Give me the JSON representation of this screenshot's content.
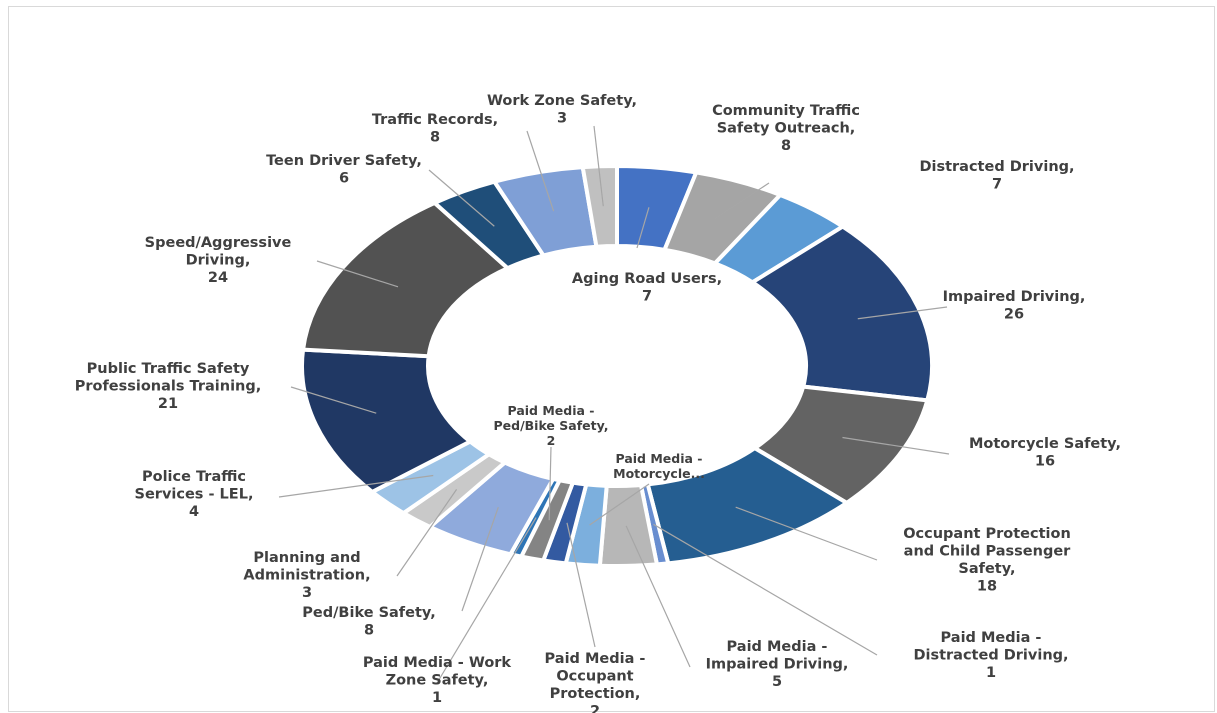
{
  "chart_data": {
    "type": "pie",
    "title": "",
    "slices": [
      {
        "name": "Aging Road Users",
        "value": 7,
        "color": "#4472c4"
      },
      {
        "name": "Community Traffic Safety Outreach",
        "value": 8,
        "color": "#a5a5a5"
      },
      {
        "name": "Distracted Driving",
        "value": 7,
        "color": "#5b9bd5"
      },
      {
        "name": "Impaired Driving",
        "value": 26,
        "color": "#264478"
      },
      {
        "name": "Motorcycle Safety",
        "value": 16,
        "color": "#636363"
      },
      {
        "name": "Occupant Protection and Child Passenger Safety",
        "value": 18,
        "color": "#255e91"
      },
      {
        "name": "Paid Media - Distracted Driving",
        "value": 1,
        "color": "#698ed0"
      },
      {
        "name": "Paid Media - Impaired Driving",
        "value": 5,
        "color": "#b7b7b7"
      },
      {
        "name": "Paid Media - Motorcycle Safety",
        "value": 3,
        "color": "#7cafdd"
      },
      {
        "name": "Paid Media - Occupant Protection",
        "value": 2,
        "color": "#335aa1"
      },
      {
        "name": "Paid Media - Ped/Bike Safety",
        "value": 2,
        "color": "#848484"
      },
      {
        "name": "Paid Media - Work Zone Safety",
        "value": 1,
        "color": "#2e75b6"
      },
      {
        "name": "Ped/Bike Safety",
        "value": 8,
        "color": "#8faadc"
      },
      {
        "name": "Planning and Administration",
        "value": 3,
        "color": "#c9c9c9"
      },
      {
        "name": "Police Traffic Services - LEL",
        "value": 4,
        "color": "#9dc3e6"
      },
      {
        "name": "Public Traffic Safety Professionals Training",
        "value": 21,
        "color": "#203864"
      },
      {
        "name": "Speed/Aggressive Driving",
        "value": 24,
        "color": "#525252"
      },
      {
        "name": "Teen Driver Safety",
        "value": 6,
        "color": "#1f4e79"
      },
      {
        "name": "Traffic Records",
        "value": 8,
        "color": "#7f9fd6"
      },
      {
        "name": "Work Zone Safety",
        "value": 3,
        "color": "#c0c0c0"
      }
    ],
    "labels": [
      {
        "lines": [
          "Aging Road Users,",
          "7"
        ]
      },
      {
        "lines": [
          "Community Traffic",
          "Safety Outreach,",
          "8"
        ]
      },
      {
        "lines": [
          "Distracted Driving,",
          "7"
        ]
      },
      {
        "lines": [
          "Impaired Driving,",
          "26"
        ]
      },
      {
        "lines": [
          "Motorcycle Safety,",
          "16"
        ]
      },
      {
        "lines": [
          "Occupant Protection",
          "and Child Passenger",
          "Safety,",
          "18"
        ]
      },
      {
        "lines": [
          "Paid Media -",
          "Distracted Driving,",
          "1"
        ]
      },
      {
        "lines": [
          "Paid Media -",
          "Impaired Driving,",
          "5"
        ]
      },
      {
        "lines": [
          "Paid Media -",
          "Motorcycle..."
        ]
      },
      {
        "lines": [
          "Paid Media -",
          "Occupant",
          "Protection,",
          "2"
        ]
      },
      {
        "lines": [
          "Paid Media -",
          "Ped/Bike Safety,",
          "2"
        ]
      },
      {
        "lines": [
          "Paid Media - Work",
          "Zone Safety,",
          "1"
        ]
      },
      {
        "lines": [
          "Ped/Bike Safety,",
          "8"
        ]
      },
      {
        "lines": [
          "Planning and",
          "Administration,",
          "3"
        ]
      },
      {
        "lines": [
          "Police Traffic",
          "Services - LEL,",
          "4"
        ]
      },
      {
        "lines": [
          "Public Traffic Safety",
          "Professionals Training,",
          "21"
        ]
      },
      {
        "lines": [
          "Speed/Aggressive",
          "Driving,",
          "24"
        ]
      },
      {
        "lines": [
          "Teen Driver Safety,",
          "6"
        ]
      },
      {
        "lines": [
          "Traffic Records,",
          "8"
        ]
      },
      {
        "lines": [
          "Work Zone Safety,",
          "3"
        ]
      }
    ],
    "legend": "none",
    "inner_radius_ratio": 0.6
  }
}
